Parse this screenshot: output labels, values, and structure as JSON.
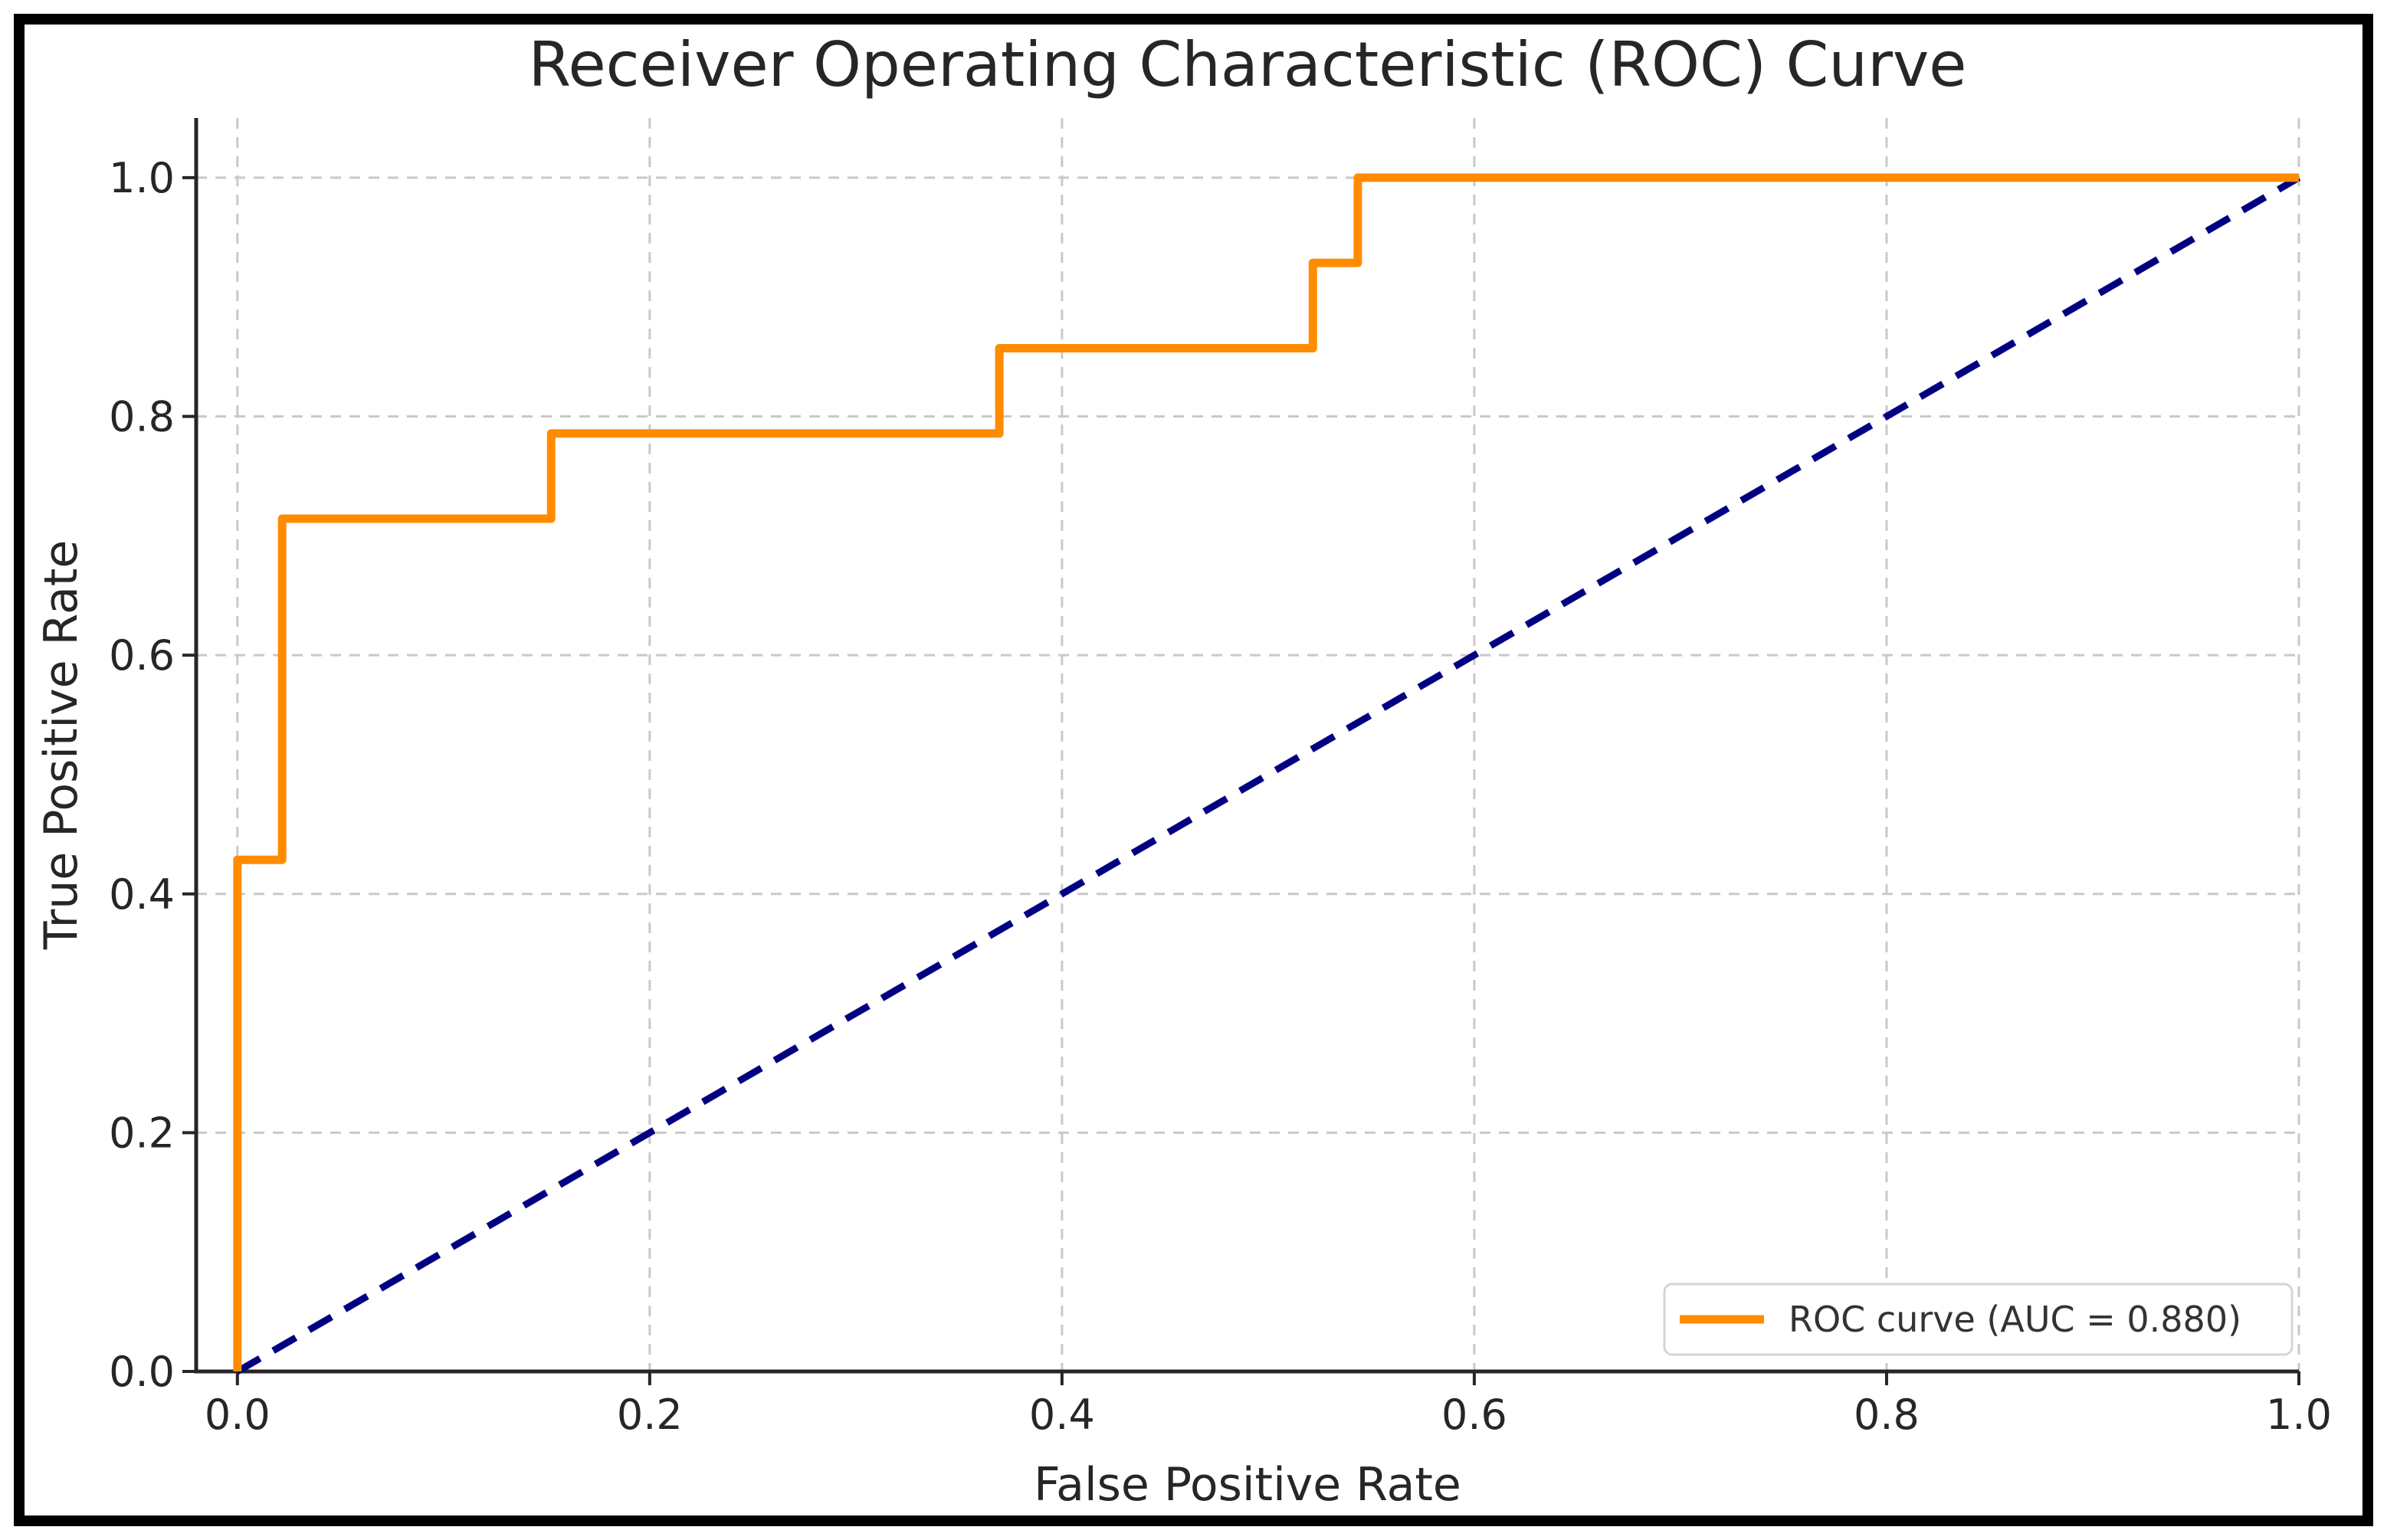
{
  "figure": {
    "frame_color": "#000000",
    "background_color": "#ffffff",
    "text_color": "#262626",
    "grid_color": "#c9c9c9"
  },
  "chart_data": {
    "type": "line",
    "title": "Receiver Operating Characteristic (ROC) Curve",
    "xlabel": "False Positive Rate",
    "ylabel": "True Positive Rate",
    "xlim": [
      -0.02,
      1.0
    ],
    "ylim": [
      0.0,
      1.05
    ],
    "grid": true,
    "x_ticks": [
      "0.0",
      "0.2",
      "0.4",
      "0.6",
      "0.8",
      "1.0"
    ],
    "y_ticks": [
      "0.0",
      "0.2",
      "0.4",
      "0.6",
      "0.8",
      "1.0"
    ],
    "x_tick_values": [
      0.0,
      0.2,
      0.4,
      0.6,
      0.8,
      1.0
    ],
    "y_tick_values": [
      0.0,
      0.2,
      0.4,
      0.6,
      0.8,
      1.0
    ],
    "series": [
      {
        "name": "chance-diagonal",
        "style": "dashed",
        "color": "#000080",
        "x": [
          0.0,
          1.0
        ],
        "y": [
          0.0,
          1.0
        ]
      },
      {
        "name": "roc-curve",
        "style": "step",
        "color": "#FF8C00",
        "x": [
          0.0,
          0.0,
          0.0217,
          0.0217,
          0.1522,
          0.1522,
          0.3696,
          0.3696,
          0.5217,
          0.5217,
          0.5435,
          0.5435,
          1.0
        ],
        "y": [
          0.0,
          0.4286,
          0.4286,
          0.7143,
          0.7143,
          0.7857,
          0.7857,
          0.8571,
          0.8571,
          0.9286,
          0.9286,
          1.0,
          1.0
        ]
      }
    ],
    "auc": 0.88,
    "legend": {
      "position": "lower right",
      "entries": [
        {
          "label": "ROC curve (AUC = 0.880)",
          "color": "#FF8C00"
        }
      ]
    }
  }
}
